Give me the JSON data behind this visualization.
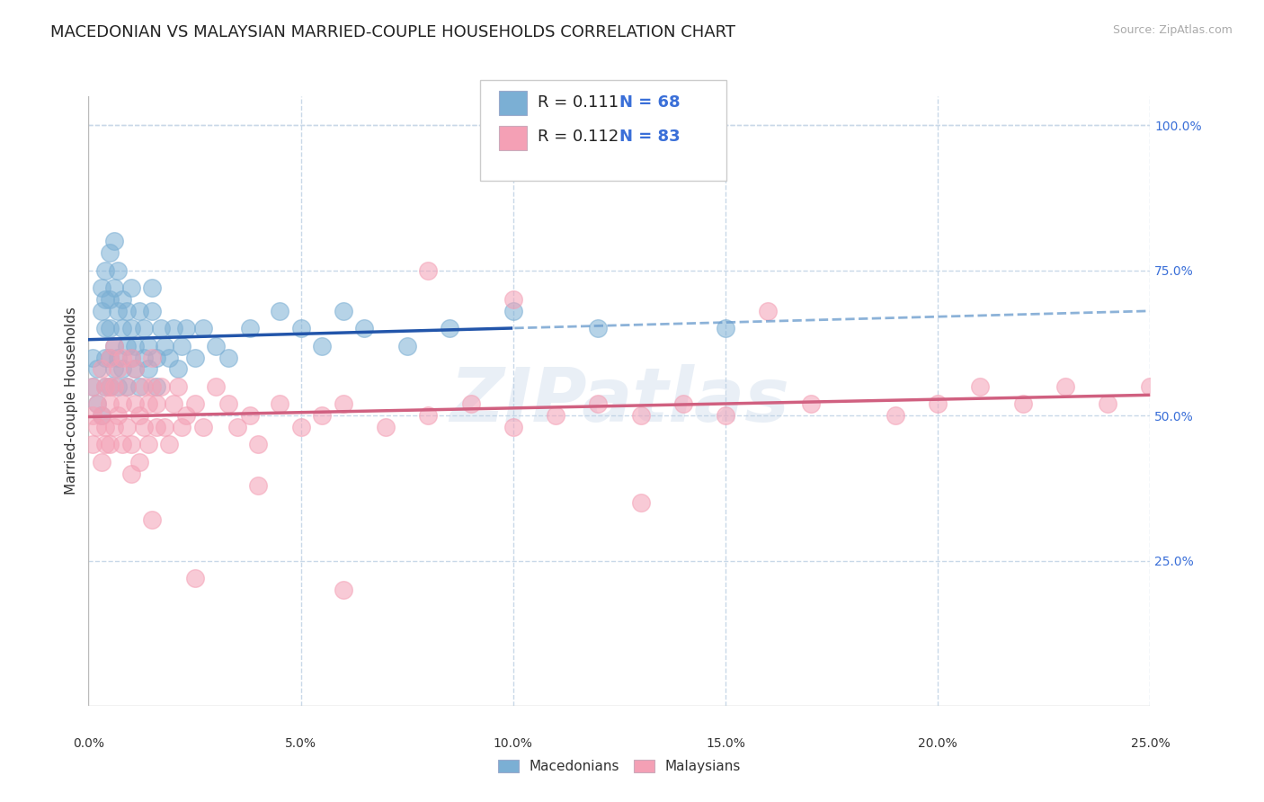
{
  "title": "MACEDONIAN VS MALAYSIAN MARRIED-COUPLE HOUSEHOLDS CORRELATION CHART",
  "source_text": "Source: ZipAtlas.com",
  "ylabel": "Married-couple Households",
  "xlim": [
    0.0,
    0.25
  ],
  "ylim": [
    0.0,
    1.05
  ],
  "x_ticks": [
    0.0,
    0.05,
    0.1,
    0.15,
    0.2,
    0.25
  ],
  "x_tick_labels": [
    "0.0%",
    "5.0%",
    "10.0%",
    "15.0%",
    "20.0%",
    "25.0%"
  ],
  "y_ticks_right": [
    0.25,
    0.5,
    0.75,
    1.0
  ],
  "y_tick_labels_right": [
    "25.0%",
    "50.0%",
    "75.0%",
    "100.0%"
  ],
  "macedonian_color": "#7bafd4",
  "malaysian_color": "#f4a0b5",
  "macedonian_line_color": "#2255aa",
  "malaysian_line_color": "#d06080",
  "macedonian_line_dashed_color": "#6699cc",
  "R_macedonian": "0.111",
  "N_macedonian": "68",
  "R_malaysian": "0.112",
  "N_malaysian": "83",
  "mac_seed": 42,
  "mal_seed": 99,
  "macedonian_x": [
    0.001,
    0.001,
    0.002,
    0.002,
    0.003,
    0.003,
    0.003,
    0.004,
    0.004,
    0.004,
    0.004,
    0.004,
    0.005,
    0.005,
    0.005,
    0.005,
    0.005,
    0.006,
    0.006,
    0.006,
    0.006,
    0.007,
    0.007,
    0.007,
    0.007,
    0.008,
    0.008,
    0.008,
    0.009,
    0.009,
    0.009,
    0.01,
    0.01,
    0.01,
    0.011,
    0.011,
    0.012,
    0.012,
    0.013,
    0.013,
    0.014,
    0.014,
    0.015,
    0.015,
    0.016,
    0.016,
    0.017,
    0.018,
    0.019,
    0.02,
    0.021,
    0.022,
    0.023,
    0.025,
    0.027,
    0.03,
    0.033,
    0.038,
    0.045,
    0.05,
    0.055,
    0.06,
    0.065,
    0.075,
    0.085,
    0.1,
    0.12,
    0.15
  ],
  "macedonian_y": [
    0.55,
    0.6,
    0.58,
    0.52,
    0.68,
    0.72,
    0.5,
    0.65,
    0.7,
    0.6,
    0.55,
    0.75,
    0.78,
    0.65,
    0.6,
    0.55,
    0.7,
    0.8,
    0.72,
    0.58,
    0.62,
    0.75,
    0.68,
    0.55,
    0.6,
    0.65,
    0.7,
    0.58,
    0.62,
    0.55,
    0.68,
    0.72,
    0.6,
    0.65,
    0.58,
    0.62,
    0.68,
    0.55,
    0.6,
    0.65,
    0.58,
    0.62,
    0.68,
    0.72,
    0.6,
    0.55,
    0.65,
    0.62,
    0.6,
    0.65,
    0.58,
    0.62,
    0.65,
    0.6,
    0.65,
    0.62,
    0.6,
    0.65,
    0.68,
    0.65,
    0.62,
    0.68,
    0.65,
    0.62,
    0.65,
    0.68,
    0.65,
    0.65
  ],
  "malaysian_x": [
    0.001,
    0.001,
    0.001,
    0.002,
    0.002,
    0.003,
    0.003,
    0.003,
    0.004,
    0.004,
    0.004,
    0.005,
    0.005,
    0.005,
    0.005,
    0.006,
    0.006,
    0.006,
    0.007,
    0.007,
    0.008,
    0.008,
    0.008,
    0.009,
    0.009,
    0.01,
    0.01,
    0.011,
    0.011,
    0.012,
    0.012,
    0.013,
    0.013,
    0.014,
    0.014,
    0.015,
    0.015,
    0.016,
    0.016,
    0.017,
    0.018,
    0.019,
    0.02,
    0.021,
    0.022,
    0.023,
    0.025,
    0.027,
    0.03,
    0.033,
    0.035,
    0.038,
    0.04,
    0.045,
    0.05,
    0.055,
    0.06,
    0.07,
    0.08,
    0.09,
    0.1,
    0.11,
    0.12,
    0.13,
    0.14,
    0.15,
    0.17,
    0.19,
    0.2,
    0.21,
    0.22,
    0.23,
    0.24,
    0.25,
    0.08,
    0.1,
    0.13,
    0.16,
    0.06,
    0.04,
    0.025,
    0.015,
    0.01
  ],
  "malaysian_y": [
    0.5,
    0.55,
    0.45,
    0.52,
    0.48,
    0.58,
    0.42,
    0.5,
    0.55,
    0.48,
    0.45,
    0.6,
    0.52,
    0.45,
    0.55,
    0.62,
    0.48,
    0.55,
    0.5,
    0.58,
    0.52,
    0.45,
    0.6,
    0.55,
    0.48,
    0.6,
    0.45,
    0.52,
    0.58,
    0.5,
    0.42,
    0.55,
    0.48,
    0.52,
    0.45,
    0.6,
    0.55,
    0.48,
    0.52,
    0.55,
    0.48,
    0.45,
    0.52,
    0.55,
    0.48,
    0.5,
    0.52,
    0.48,
    0.55,
    0.52,
    0.48,
    0.5,
    0.45,
    0.52,
    0.48,
    0.5,
    0.52,
    0.48,
    0.5,
    0.52,
    0.48,
    0.5,
    0.52,
    0.5,
    0.52,
    0.5,
    0.52,
    0.5,
    0.52,
    0.55,
    0.52,
    0.55,
    0.52,
    0.55,
    0.75,
    0.7,
    0.35,
    0.68,
    0.2,
    0.38,
    0.22,
    0.32,
    0.4
  ],
  "watermark_text": "ZIPatlas",
  "background_color": "#ffffff",
  "grid_color": "#c8d8e8",
  "title_fontsize": 13,
  "label_fontsize": 11,
  "tick_fontsize": 10,
  "legend_fontsize": 13,
  "mac_line_split": 0.1,
  "scatter_size": 200,
  "scatter_alpha": 0.55,
  "scatter_edge_width": 1.0
}
